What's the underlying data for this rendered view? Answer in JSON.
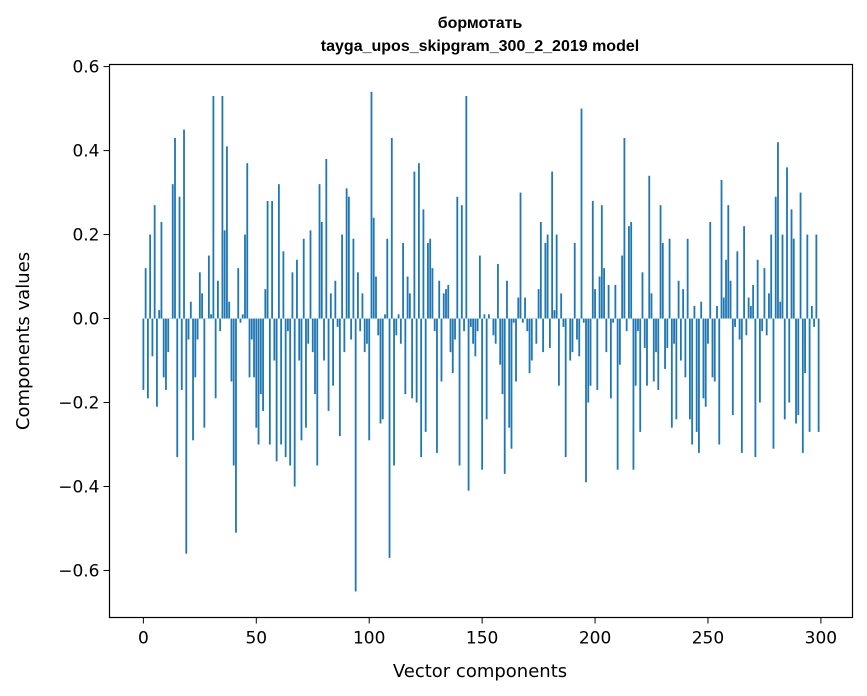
{
  "chart_data": {
    "type": "bar",
    "title": "бормотать",
    "subtitle": "tayga_upos_skipgram_300_2_2019 model",
    "xlabel": "Vector components",
    "ylabel": "Components values",
    "xlim": [
      -15,
      314
    ],
    "ylim": [
      -0.712,
      0.605
    ],
    "xticks": [
      0,
      50,
      100,
      150,
      200,
      250,
      300
    ],
    "xtick_labels": [
      "0",
      "50",
      "100",
      "150",
      "200",
      "250",
      "300"
    ],
    "yticks": [
      -0.6,
      -0.4,
      -0.2,
      0.0,
      0.2,
      0.4,
      0.6
    ],
    "ytick_labels": [
      "−0.6",
      "−0.4",
      "−0.2",
      "0.0",
      "0.2",
      "0.4",
      "0.6"
    ],
    "grid": false,
    "color": "#1f77b4",
    "values": [
      -0.17,
      0.12,
      -0.19,
      0.2,
      -0.09,
      0.27,
      -0.21,
      0.02,
      0.23,
      -0.14,
      -0.17,
      -0.08,
      0.0,
      0.32,
      0.43,
      -0.33,
      0.29,
      -0.17,
      0.45,
      -0.56,
      -0.05,
      0.04,
      -0.29,
      -0.14,
      -0.05,
      0.11,
      0.06,
      -0.26,
      0.0,
      0.15,
      0.01,
      0.53,
      -0.19,
      0.09,
      -0.03,
      0.53,
      0.21,
      0.41,
      0.04,
      -0.15,
      -0.35,
      -0.51,
      0.12,
      -0.01,
      0.01,
      0.2,
      0.37,
      -0.14,
      -0.05,
      -0.14,
      -0.26,
      -0.3,
      -0.18,
      -0.22,
      0.07,
      0.28,
      -0.3,
      0.28,
      -0.1,
      -0.34,
      0.32,
      -0.3,
      0.16,
      -0.33,
      -0.03,
      -0.35,
      0.11,
      -0.4,
      0.14,
      -0.1,
      -0.29,
      0.19,
      -0.26,
      -0.06,
      0.21,
      -0.08,
      -0.18,
      -0.35,
      0.32,
      0.23,
      -0.1,
      0.38,
      -0.22,
      0.06,
      -0.16,
      0.09,
      -0.02,
      -0.28,
      0.2,
      -0.08,
      0.31,
      0.29,
      -0.05,
      0.19,
      -0.65,
      0.11,
      -0.03,
      0.06,
      -0.08,
      -0.06,
      -0.29,
      0.54,
      0.24,
      0.1,
      -0.04,
      -0.25,
      -0.24,
      0.01,
      0.19,
      -0.57,
      0.43,
      -0.35,
      -0.04,
      0.01,
      -0.06,
      0.18,
      -0.18,
      0.1,
      0.06,
      -0.19,
      0.35,
      -0.2,
      0.37,
      -0.33,
      0.26,
      -0.27,
      0.18,
      0.19,
      0.12,
      -0.03,
      -0.32,
      0.09,
      -0.15,
      0.06,
      0.07,
      0.08,
      -0.08,
      -0.13,
      -0.05,
      0.29,
      -0.35,
      0.27,
      -0.03,
      0.53,
      -0.41,
      -0.02,
      -0.06,
      -0.09,
      -0.03,
      0.15,
      -0.36,
      0.01,
      -0.24,
      0.01,
      0.0,
      -0.04,
      -0.06,
      0.13,
      -0.11,
      -0.18,
      -0.37,
      0.09,
      -0.26,
      -0.31,
      -0.01,
      -0.15,
      0.05,
      0.3,
      -0.01,
      0.05,
      -0.03,
      -0.13,
      -0.1,
      0.0,
      -0.06,
      0.07,
      0.23,
      -0.08,
      0.18,
      0.2,
      -0.07,
      0.35,
      0.02,
      0.2,
      -0.16,
      0.06,
      -0.02,
      -0.33,
      0.0,
      -0.1,
      -0.08,
      0.18,
      -0.05,
      -0.09,
      0.5,
      -0.01,
      -0.39,
      -0.2,
      -0.16,
      0.28,
      0.07,
      -0.17,
      0.1,
      0.27,
      0.12,
      -0.08,
      0.08,
      -0.19,
      -0.01,
      0.08,
      -0.36,
      -0.11,
      0.15,
      0.43,
      -0.03,
      0.22,
      0.23,
      -0.36,
      -0.16,
      -0.03,
      -0.27,
      0.11,
      -0.07,
      -0.16,
      0.34,
      0.06,
      -0.15,
      -0.08,
      -0.17,
      0.27,
      0.18,
      -0.12,
      -0.07,
      0.19,
      -0.26,
      -0.06,
      -0.24,
      0.09,
      -0.1,
      0.07,
      -0.14,
      0.19,
      -0.24,
      -0.3,
      0.03,
      -0.27,
      -0.32,
      0.04,
      -0.19,
      -0.21,
      -0.06,
      0.23,
      -0.14,
      -0.15,
      0.03,
      -0.3,
      0.33,
      0.05,
      0.14,
      0.27,
      0.09,
      -0.23,
      -0.02,
      0.16,
      -0.05,
      -0.32,
      0.22,
      -0.04,
      0.05,
      0.03,
      0.08,
      -0.33,
      0.14,
      -0.2,
      -0.03,
      0.12,
      -0.04,
      0.06,
      0.2,
      -0.31,
      0.29,
      0.42,
      0.04,
      0.2,
      -0.24,
      0.36,
      -0.2,
      0.26,
      0.19,
      -0.25,
      -0.23,
      0.3,
      -0.32,
      -0.13,
      0.2,
      -0.27,
      0.03,
      -0.02,
      0.2,
      -0.27
    ]
  }
}
